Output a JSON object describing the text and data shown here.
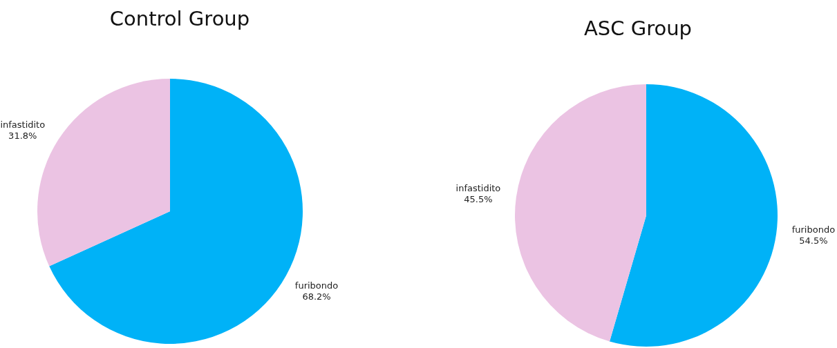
{
  "chart_data": [
    {
      "type": "pie",
      "title": "Control Group",
      "categories": [
        "furibondo",
        "infastidito"
      ],
      "values": [
        68.2,
        31.8
      ],
      "colors": [
        "#00b2f7",
        "#ebc3e3"
      ],
      "value_labels": [
        "68.2%",
        "31.8%"
      ]
    },
    {
      "type": "pie",
      "title": "ASC Group",
      "categories": [
        "furibondo",
        "infastidito"
      ],
      "values": [
        54.5,
        45.5
      ],
      "colors": [
        "#00b2f7",
        "#ebc3e3"
      ],
      "value_labels": [
        "54.5%",
        "45.5%"
      ]
    }
  ]
}
